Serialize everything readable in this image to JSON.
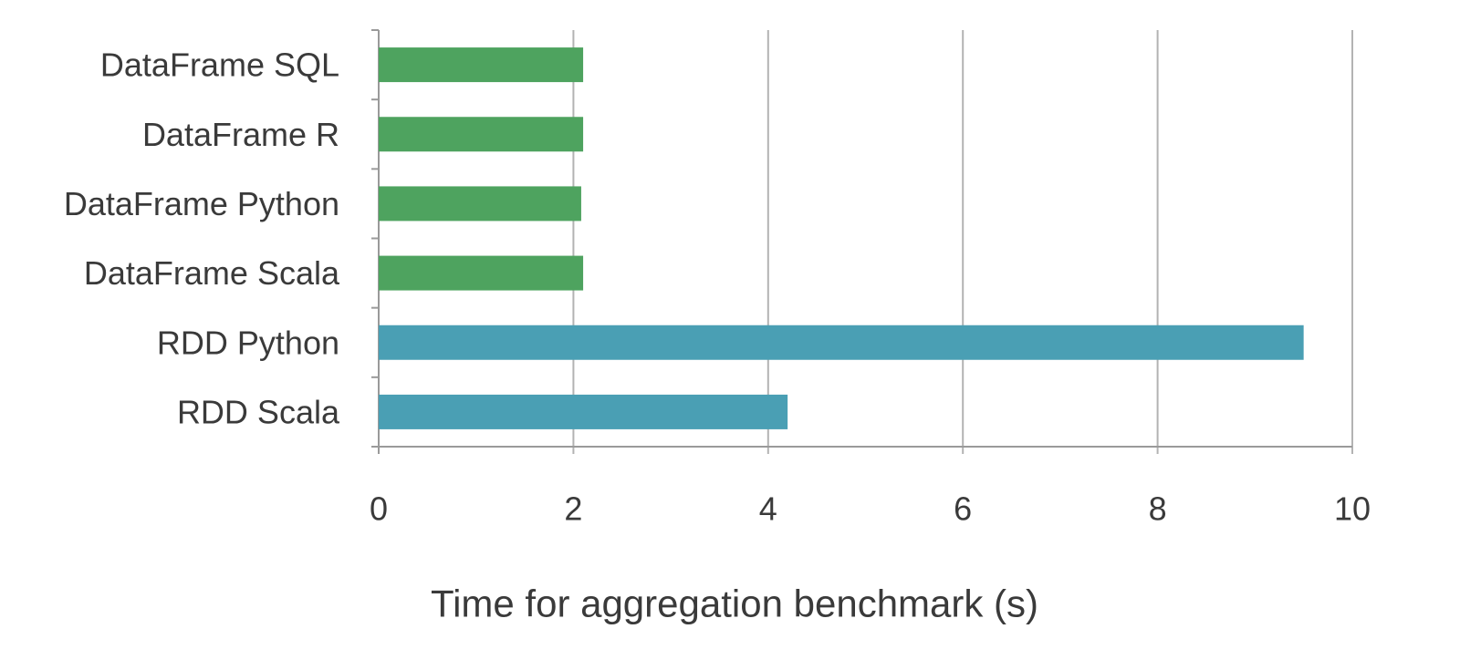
{
  "chart_data": {
    "type": "bar",
    "orientation": "horizontal",
    "categories": [
      "DataFrame SQL",
      "DataFrame R",
      "DataFrame Python",
      "DataFrame Scala",
      "RDD Python",
      "RDD Scala"
    ],
    "values": [
      2.1,
      2.1,
      2.08,
      2.1,
      9.5,
      4.2
    ],
    "bar_colors": [
      "#4ea35f",
      "#4ea35f",
      "#4ea35f",
      "#4ea35f",
      "#4a9fb4",
      "#4a9fb4"
    ],
    "xlabel": "Time for aggregation benchmark (s)",
    "ylabel": "",
    "xlim": [
      0,
      10
    ],
    "xticks": [
      0,
      2,
      4,
      6,
      8,
      10
    ],
    "grid": true
  }
}
